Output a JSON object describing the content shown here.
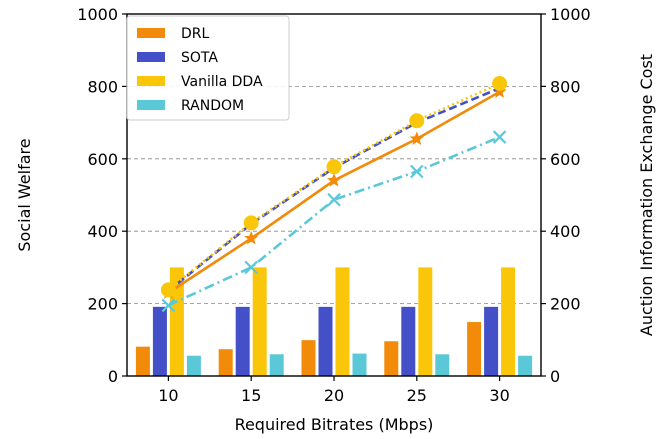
{
  "chart_data": {
    "type": "bar+line",
    "x": [
      10,
      15,
      20,
      25,
      30
    ],
    "categories": [
      "10",
      "15",
      "20",
      "25",
      "30"
    ],
    "xlabel": "Required Bitrates (Mbps)",
    "ylabel_left": "Social Welfare",
    "ylabel_right": "Auction Information Exchange Cost",
    "ylim_left": [
      0,
      1000
    ],
    "ylim_right": [
      0,
      1000
    ],
    "yticks": [
      "0",
      "200",
      "400",
      "600",
      "800",
      "1000"
    ],
    "grid": "horizontal dashed",
    "legend_placement": "upper-left",
    "bar_series": [
      {
        "name": "DRL",
        "color": "#F28A0A",
        "values": [
          81,
          74,
          99,
          96,
          149
        ]
      },
      {
        "name": "SOTA",
        "color": "#4350C8",
        "values": [
          191,
          191,
          191,
          191,
          191
        ]
      },
      {
        "name": "Vanilla DDA",
        "color": "#FAC60A",
        "values": [
          300,
          300,
          300,
          300,
          300
        ]
      },
      {
        "name": "RANDOM",
        "color": "#5BC8D8",
        "values": [
          56,
          60,
          62,
          60,
          56
        ]
      }
    ],
    "line_series": [
      {
        "name": "DRL",
        "color": "#F28A0A",
        "style": "solid",
        "marker": "star",
        "values": [
          230,
          380,
          540,
          655,
          785
        ]
      },
      {
        "name": "SOTA",
        "color": "#4350C8",
        "style": "dashed",
        "marker": "none",
        "values": [
          235,
          420,
          575,
          700,
          795
        ]
      },
      {
        "name": "Vanilla DDA",
        "color": "#FAC60A",
        "style": "dotted",
        "marker": "circle",
        "values": [
          238,
          423,
          578,
          705,
          808
        ]
      },
      {
        "name": "RANDOM",
        "color": "#5BC8D8",
        "style": "dashdot",
        "marker": "x",
        "values": [
          195,
          300,
          487,
          565,
          660
        ]
      }
    ]
  }
}
